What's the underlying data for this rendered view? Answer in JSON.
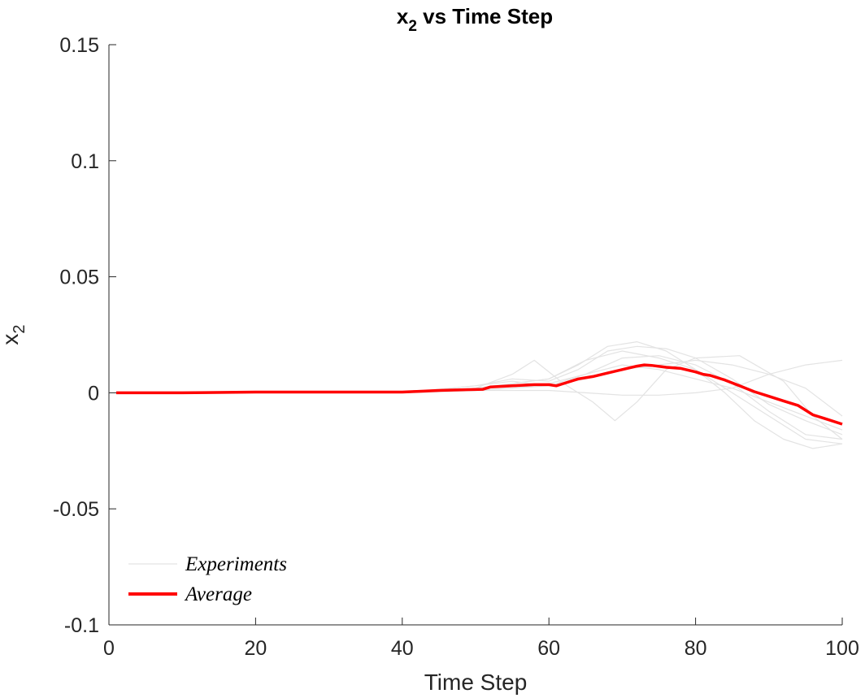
{
  "chart_data": {
    "type": "line",
    "title": "x",
    "title_subscript": "2",
    "title_suffix": " vs Time Step",
    "xlabel": "Time Step",
    "ylabel": "x",
    "ylabel_subscript": "2",
    "xlim": [
      0,
      100
    ],
    "ylim": [
      -0.1,
      0.15
    ],
    "xticks": [
      0,
      20,
      40,
      60,
      80,
      100
    ],
    "xtick_labels": [
      "0",
      "20",
      "40",
      "60",
      "80",
      "100"
    ],
    "yticks": [
      -0.1,
      -0.05,
      0,
      0.05,
      0.1,
      0.15
    ],
    "ytick_labels": [
      "-0.1",
      "-0.05",
      "0",
      "0.05",
      "0.1",
      "0.15"
    ],
    "grid": false,
    "legend_position": "bottom-left",
    "legend": [
      "Experiments",
      "Average"
    ],
    "colors": {
      "experiments": "#e3e3e3",
      "average": "#ff0000",
      "axis": "#262626"
    },
    "series": [
      {
        "group": "Experiments",
        "x": [
          1,
          40,
          50,
          55,
          60,
          64,
          68,
          72,
          76,
          80,
          85,
          90,
          95,
          100
        ],
        "y": [
          0,
          0,
          0.003,
          0.006,
          0.005,
          0.01,
          0.018,
          0.02,
          0.019,
          0.015,
          0.006,
          -0.005,
          -0.012,
          -0.018
        ]
      },
      {
        "group": "Experiments",
        "x": [
          1,
          40,
          50,
          55,
          60,
          64,
          68,
          72,
          76,
          80,
          85,
          90,
          95,
          100
        ],
        "y": [
          0,
          0,
          0.001,
          0.004,
          0.006,
          0.012,
          0.02,
          0.022,
          0.018,
          0.01,
          0.0,
          -0.01,
          -0.02,
          -0.022
        ]
      },
      {
        "group": "Experiments",
        "x": [
          1,
          40,
          50,
          55,
          58,
          62,
          66,
          69,
          72,
          76,
          80,
          86,
          92,
          96,
          100
        ],
        "y": [
          0,
          0,
          0.002,
          0.008,
          0.014,
          0.004,
          -0.004,
          -0.012,
          -0.004,
          0.01,
          0.015,
          0.016,
          0.005,
          -0.01,
          -0.02
        ]
      },
      {
        "group": "Experiments",
        "x": [
          1,
          40,
          50,
          55,
          60,
          65,
          70,
          75,
          80,
          85,
          90,
          95,
          100
        ],
        "y": [
          0,
          0,
          0.001,
          0.002,
          0.004,
          0.008,
          0.015,
          0.016,
          0.012,
          0.004,
          -0.008,
          -0.018,
          -0.02
        ]
      },
      {
        "group": "Experiments",
        "x": [
          1,
          40,
          50,
          55,
          60,
          65,
          70,
          75,
          80,
          85,
          90,
          95,
          100
        ],
        "y": [
          0,
          0,
          0.001,
          0.001,
          0.001,
          0.0,
          -0.001,
          -0.001,
          0.0,
          0.002,
          0.008,
          0.012,
          0.014
        ]
      },
      {
        "group": "Experiments",
        "x": [
          1,
          40,
          50,
          55,
          60,
          65,
          70,
          75,
          80,
          84,
          88,
          92,
          96,
          100
        ],
        "y": [
          0,
          0,
          0.002,
          0.004,
          0.006,
          0.014,
          0.018,
          0.015,
          0.01,
          0.0,
          -0.012,
          -0.02,
          -0.024,
          -0.022
        ]
      },
      {
        "group": "Experiments",
        "x": [
          1,
          40,
          50,
          55,
          60,
          65,
          70,
          75,
          80,
          85,
          90,
          95,
          100
        ],
        "y": [
          0,
          0,
          0.003,
          0.005,
          0.003,
          0.008,
          0.012,
          0.01,
          0.006,
          0.002,
          -0.004,
          -0.01,
          -0.016
        ]
      },
      {
        "group": "Experiments",
        "x": [
          1,
          40,
          50,
          55,
          60,
          65,
          70,
          75,
          80,
          85,
          90,
          95,
          100
        ],
        "y": [
          0,
          0,
          0.001,
          0.002,
          0.003,
          0.006,
          0.01,
          0.012,
          0.014,
          0.012,
          0.008,
          0.002,
          -0.01
        ]
      },
      {
        "name": "Average",
        "x": [
          1,
          10,
          20,
          30,
          40,
          42,
          45,
          48,
          51,
          52,
          55,
          58,
          60,
          61,
          62,
          64,
          66,
          68,
          70,
          72,
          73,
          74,
          76,
          78,
          80,
          81,
          82,
          84,
          86,
          88,
          90,
          92,
          94,
          96,
          98,
          100
        ],
        "y": [
          0,
          0,
          0.0003,
          0.0003,
          0.0003,
          0.0006,
          0.001,
          0.0013,
          0.0015,
          0.0025,
          0.003,
          0.0035,
          0.0035,
          0.003,
          0.004,
          0.006,
          0.007,
          0.0085,
          0.01,
          0.0115,
          0.012,
          0.0118,
          0.011,
          0.0105,
          0.009,
          0.008,
          0.0075,
          0.0055,
          0.003,
          0.0005,
          -0.0015,
          -0.0035,
          -0.0055,
          -0.0095,
          -0.0115,
          -0.0135
        ]
      }
    ]
  }
}
